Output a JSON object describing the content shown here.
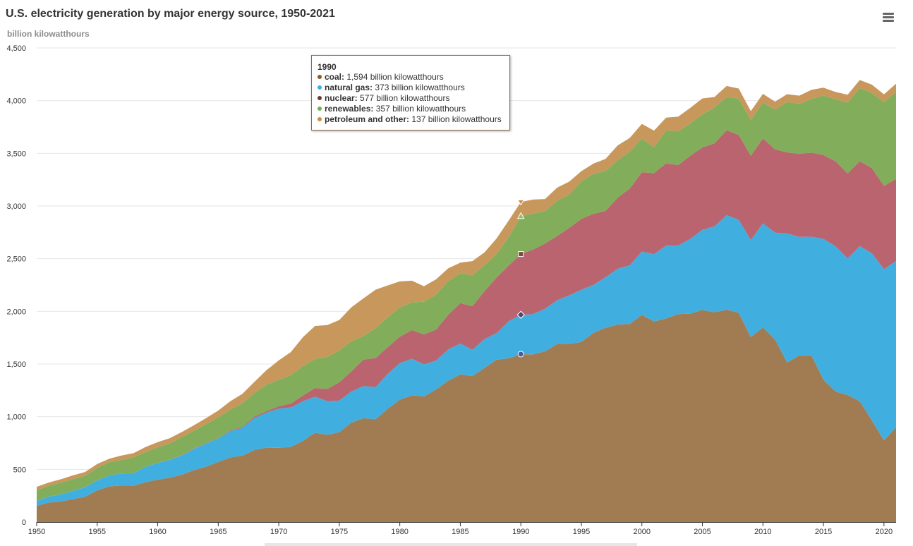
{
  "header": {
    "title": "U.S. electricity generation by major energy source, 1950-2021",
    "subtitle": "billion kilowatthours",
    "menu_icon": "hamburger-menu-icon"
  },
  "tooltip": {
    "year": "1990",
    "rows": [
      {
        "name": "coal:",
        "value": "1,594 billion kilowatthours",
        "color": "#8b5a2b"
      },
      {
        "name": "natural gas:",
        "value": "373 billion kilowatthours",
        "color": "#3eaee2"
      },
      {
        "name": "nuclear:",
        "value": "577 billion kilowatthours",
        "color": "#6b3a36"
      },
      {
        "name": "renewables:",
        "value": "357 billion kilowatthours",
        "color": "#76ad4e"
      },
      {
        "name": "petroleum and other:",
        "value": "137 billion kilowatthours",
        "color": "#cd8c45"
      }
    ]
  },
  "chart_data": {
    "type": "area",
    "stacked": true,
    "title": "U.S. electricity generation by major energy source, 1950-2021",
    "ylabel": "billion kilowatthours",
    "xlabel": "",
    "xlim": [
      1950,
      2021
    ],
    "ylim": [
      0,
      4500
    ],
    "yticks": [
      0,
      500,
      1000,
      1500,
      2000,
      2500,
      3000,
      3500,
      4000,
      4500
    ],
    "ytick_labels": [
      "0",
      "500",
      "1,000",
      "1,500",
      "2,000",
      "2,500",
      "3,000",
      "3,500",
      "4,000",
      "4,500"
    ],
    "xticks": [
      1950,
      1955,
      1960,
      1965,
      1970,
      1975,
      1980,
      1985,
      1990,
      1995,
      2000,
      2005,
      2010,
      2015,
      2020
    ],
    "xtick_labels": [
      "1950",
      "1955",
      "1960",
      "1965",
      "1970",
      "1975",
      "1980",
      "1985",
      "1990",
      "1995",
      "2000",
      "2005",
      "2010",
      "2015",
      "2020"
    ],
    "highlight_year": 1990,
    "x": [
      1950,
      1951,
      1952,
      1953,
      1954,
      1955,
      1956,
      1957,
      1958,
      1959,
      1960,
      1961,
      1962,
      1963,
      1964,
      1965,
      1966,
      1967,
      1968,
      1969,
      1970,
      1971,
      1972,
      1973,
      1974,
      1975,
      1976,
      1977,
      1978,
      1979,
      1980,
      1981,
      1982,
      1983,
      1984,
      1985,
      1986,
      1987,
      1988,
      1989,
      1990,
      1991,
      1992,
      1993,
      1994,
      1995,
      1996,
      1997,
      1998,
      1999,
      2000,
      2001,
      2002,
      2003,
      2004,
      2005,
      2006,
      2007,
      2008,
      2009,
      2010,
      2011,
      2012,
      2013,
      2014,
      2015,
      2016,
      2017,
      2018,
      2019,
      2020,
      2021
    ],
    "series": [
      {
        "name": "coal",
        "color": "#a17c52",
        "values": [
          155,
          185,
          195,
          218,
          239,
          301,
          338,
          346,
          344,
          378,
          403,
          421,
          450,
          493,
          526,
          571,
          613,
          630,
          685,
          706,
          704,
          713,
          771,
          848,
          828,
          853,
          944,
          985,
          976,
          1075,
          1162,
          1203,
          1192,
          1259,
          1342,
          1402,
          1386,
          1464,
          1541,
          1554,
          1594,
          1591,
          1621,
          1690,
          1691,
          1709,
          1796,
          1845,
          1874,
          1881,
          1966,
          1904,
          1933,
          1974,
          1978,
          2013,
          1991,
          2016,
          1986,
          1756,
          1847,
          1733,
          1514,
          1581,
          1582,
          1352,
          1239,
          1206,
          1146,
          965,
          774,
          899
        ]
      },
      {
        "name": "natural gas",
        "color": "#41aee0",
        "values": [
          45,
          57,
          68,
          78,
          92,
          95,
          104,
          114,
          120,
          147,
          158,
          170,
          184,
          202,
          220,
          222,
          251,
          265,
          304,
          333,
          373,
          374,
          376,
          341,
          320,
          300,
          295,
          306,
          305,
          330,
          346,
          346,
          305,
          274,
          297,
          292,
          249,
          273,
          253,
          352,
          373,
          382,
          404,
          415,
          461,
          496,
          455,
          479,
          531,
          556,
          601,
          639,
          691,
          650,
          710,
          761,
          816,
          897,
          883,
          921,
          988,
          1014,
          1226,
          1125,
          1127,
          1335,
          1379,
          1297,
          1473,
          1586,
          1627,
          1579
        ]
      },
      {
        "name": "nuclear",
        "color": "#b9646f",
        "values": [
          0,
          0,
          0,
          0,
          0,
          0,
          0,
          0,
          0,
          0,
          0.5,
          2,
          2,
          3,
          3,
          4,
          6,
          8,
          13,
          14,
          22,
          38,
          54,
          83,
          114,
          173,
          191,
          251,
          276,
          255,
          251,
          273,
          283,
          294,
          328,
          384,
          414,
          455,
          527,
          529,
          577,
          613,
          619,
          610,
          640,
          673,
          675,
          629,
          674,
          728,
          754,
          769,
          780,
          764,
          789,
          782,
          787,
          806,
          806,
          799,
          807,
          790,
          769,
          789,
          797,
          797,
          806,
          805,
          807,
          809,
          790,
          778
        ]
      },
      {
        "name": "renewables",
        "color": "#82ae5b",
        "values": [
          101,
          104,
          111,
          110,
          108,
          118,
          126,
          131,
          150,
          140,
          149,
          154,
          171,
          169,
          181,
          196,
          198,
          225,
          226,
          252,
          251,
          269,
          280,
          276,
          306,
          303,
          288,
          224,
          284,
          283,
          279,
          263,
          312,
          333,
          321,
          284,
          291,
          250,
          223,
          269,
          357,
          343,
          307,
          335,
          317,
          356,
          380,
          379,
          356,
          352,
          318,
          247,
          313,
          321,
          307,
          314,
          342,
          314,
          346,
          341,
          341,
          379,
          479,
          475,
          509,
          565,
          589,
          673,
          693,
          713,
          794,
          827
        ]
      },
      {
        "name": "petroleum and other",
        "color": "#c8975c",
        "values": [
          33,
          29,
          32,
          37,
          36,
          37,
          33,
          40,
          40,
          47,
          48,
          49,
          48,
          52,
          57,
          65,
          79,
          89,
          104,
          138,
          184,
          220,
          274,
          314,
          301,
          289,
          320,
          358,
          365,
          303,
          246,
          206,
          146,
          144,
          120,
          100,
          137,
          118,
          149,
          159,
          137,
          132,
          115,
          124,
          123,
          97,
          97,
          115,
          140,
          129,
          140,
          157,
          122,
          139,
          148,
          151,
          99,
          106,
          94,
          84,
          82,
          74,
          73,
          77,
          87,
          74,
          69,
          75,
          77,
          79,
          75,
          78
        ]
      }
    ]
  }
}
